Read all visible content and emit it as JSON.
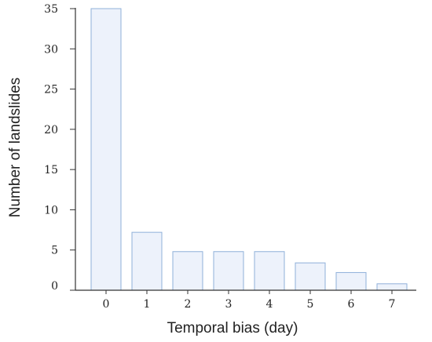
{
  "chart_data": {
    "type": "bar",
    "title": "",
    "xlabel": "Temporal bias (day)",
    "ylabel": "Number of landslides",
    "categories": [
      "0",
      "1",
      "2",
      "3",
      "4",
      "5",
      "6",
      "7"
    ],
    "values": [
      35,
      7.2,
      4.8,
      4.8,
      4.8,
      3.4,
      2.2,
      0.8
    ],
    "ylim": [
      0,
      35
    ],
    "yticks": [
      0,
      5,
      10,
      15,
      20,
      25,
      30,
      35
    ],
    "grid": false,
    "bar_fill": "#edf2fb",
    "bar_stroke": "#8fb0d9",
    "axis_color": "#333333"
  }
}
